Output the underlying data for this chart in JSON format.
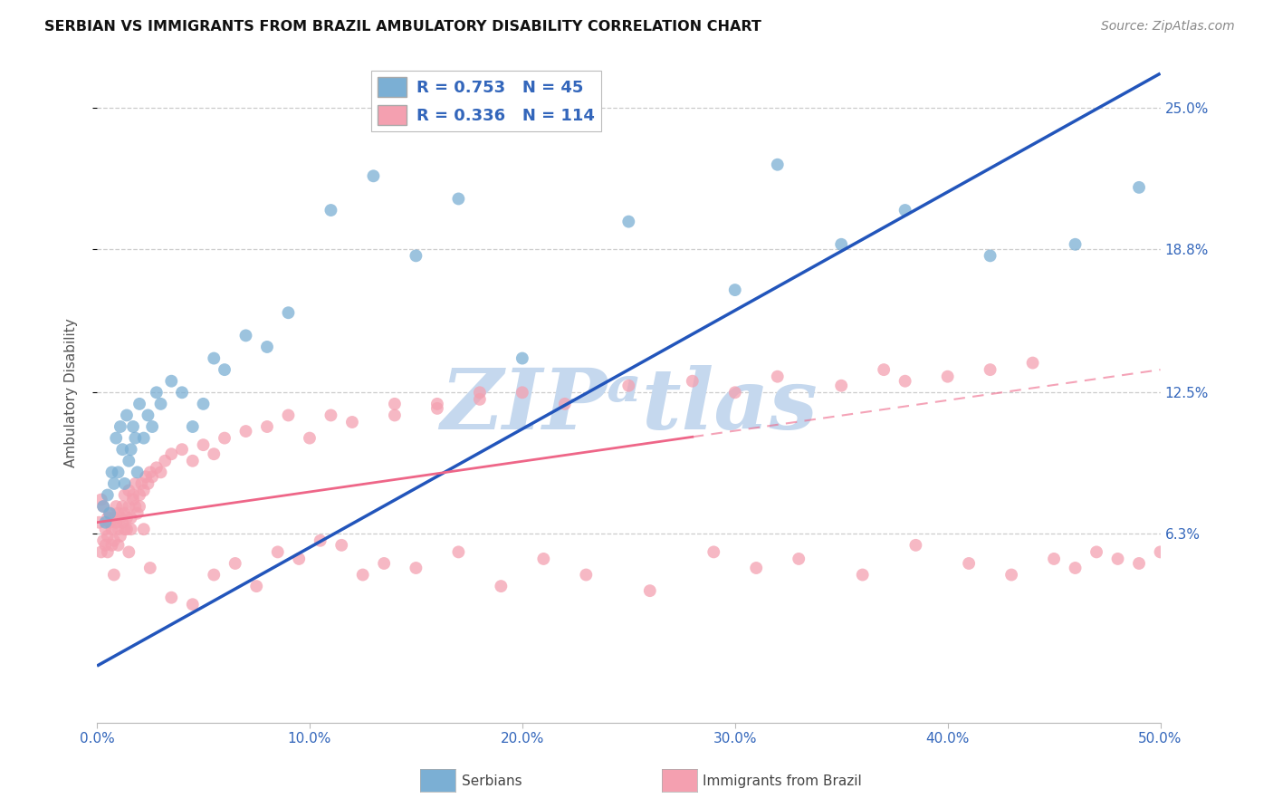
{
  "title": "SERBIAN VS IMMIGRANTS FROM BRAZIL AMBULATORY DISABILITY CORRELATION CHART",
  "source": "Source: ZipAtlas.com",
  "ylabel": "Ambulatory Disability",
  "xlabel_vals": [
    0.0,
    10.0,
    20.0,
    30.0,
    40.0,
    50.0
  ],
  "ylabel_vals": [
    6.3,
    12.5,
    18.8,
    25.0
  ],
  "xlim": [
    0.0,
    50.0
  ],
  "ylim": [
    -2.0,
    27.0
  ],
  "serbian_R": 0.753,
  "serbian_N": 45,
  "brazil_R": 0.336,
  "brazil_N": 114,
  "serbian_color": "#7BAFD4",
  "brazil_color": "#F4A0B0",
  "serbian_line_color": "#2255BB",
  "brazil_line_color": "#EE6688",
  "watermark_color": "#C5D8EE",
  "serbian_line_x0": 0.0,
  "serbian_line_y0": 0.5,
  "serbian_line_x1": 50.0,
  "serbian_line_y1": 26.5,
  "brazil_line_x0": 0.0,
  "brazil_line_y0": 6.8,
  "brazil_line_x1": 50.0,
  "brazil_line_y1": 13.5,
  "serbian_x": [
    0.3,
    0.4,
    0.5,
    0.6,
    0.7,
    0.8,
    0.9,
    1.0,
    1.1,
    1.2,
    1.3,
    1.4,
    1.5,
    1.6,
    1.7,
    1.8,
    1.9,
    2.0,
    2.2,
    2.4,
    2.6,
    2.8,
    3.0,
    3.5,
    4.0,
    4.5,
    5.0,
    5.5,
    6.0,
    7.0,
    8.0,
    9.0,
    11.0,
    13.0,
    15.0,
    17.0,
    20.0,
    25.0,
    30.0,
    32.0,
    35.0,
    38.0,
    42.0,
    46.0,
    49.0
  ],
  "serbian_y": [
    7.5,
    6.8,
    8.0,
    7.2,
    9.0,
    8.5,
    10.5,
    9.0,
    11.0,
    10.0,
    8.5,
    11.5,
    9.5,
    10.0,
    11.0,
    10.5,
    9.0,
    12.0,
    10.5,
    11.5,
    11.0,
    12.5,
    12.0,
    13.0,
    12.5,
    11.0,
    12.0,
    14.0,
    13.5,
    15.0,
    14.5,
    16.0,
    20.5,
    22.0,
    18.5,
    21.0,
    14.0,
    20.0,
    17.0,
    22.5,
    19.0,
    20.5,
    18.5,
    19.0,
    21.5
  ],
  "brazil_x": [
    0.1,
    0.2,
    0.3,
    0.3,
    0.4,
    0.4,
    0.5,
    0.5,
    0.5,
    0.6,
    0.6,
    0.7,
    0.7,
    0.8,
    0.8,
    0.9,
    0.9,
    1.0,
    1.0,
    1.0,
    1.1,
    1.1,
    1.2,
    1.2,
    1.3,
    1.3,
    1.3,
    1.4,
    1.4,
    1.5,
    1.5,
    1.6,
    1.6,
    1.7,
    1.7,
    1.8,
    1.8,
    1.9,
    2.0,
    2.0,
    2.1,
    2.2,
    2.3,
    2.4,
    2.5,
    2.6,
    2.8,
    3.0,
    3.2,
    3.5,
    4.0,
    4.5,
    5.0,
    5.5,
    6.0,
    7.0,
    8.0,
    9.0,
    10.0,
    11.0,
    12.0,
    14.0,
    16.0,
    18.0,
    20.0,
    22.0,
    25.0,
    28.0,
    30.0,
    32.0,
    35.0,
    37.0,
    38.0,
    40.0,
    42.0,
    44.0,
    14.0,
    16.0,
    18.0,
    2.5,
    3.5,
    4.5,
    5.5,
    6.5,
    7.5,
    8.5,
    9.5,
    10.5,
    11.5,
    12.5,
    13.5,
    15.0,
    17.0,
    19.0,
    21.0,
    23.0,
    26.0,
    29.0,
    31.0,
    33.0,
    36.0,
    38.5,
    41.0,
    43.0,
    45.0,
    46.0,
    47.0,
    48.0,
    49.0,
    50.0,
    0.2,
    0.8,
    1.5,
    2.2
  ],
  "brazil_y": [
    6.8,
    5.5,
    6.0,
    7.5,
    6.5,
    5.8,
    7.0,
    6.2,
    5.5,
    6.8,
    7.2,
    5.8,
    6.5,
    7.0,
    6.0,
    6.8,
    7.5,
    6.5,
    7.2,
    5.8,
    7.0,
    6.2,
    6.8,
    7.5,
    7.2,
    6.5,
    8.0,
    7.0,
    6.5,
    7.5,
    8.2,
    7.0,
    6.5,
    7.8,
    8.0,
    7.5,
    8.5,
    7.2,
    8.0,
    7.5,
    8.5,
    8.2,
    8.8,
    8.5,
    9.0,
    8.8,
    9.2,
    9.0,
    9.5,
    9.8,
    10.0,
    9.5,
    10.2,
    9.8,
    10.5,
    10.8,
    11.0,
    11.5,
    10.5,
    11.5,
    11.2,
    12.0,
    11.8,
    12.2,
    12.5,
    12.0,
    12.8,
    13.0,
    12.5,
    13.2,
    12.8,
    13.5,
    13.0,
    13.2,
    13.5,
    13.8,
    11.5,
    12.0,
    12.5,
    4.8,
    3.5,
    3.2,
    4.5,
    5.0,
    4.0,
    5.5,
    5.2,
    6.0,
    5.8,
    4.5,
    5.0,
    4.8,
    5.5,
    4.0,
    5.2,
    4.5,
    3.8,
    5.5,
    4.8,
    5.2,
    4.5,
    5.8,
    5.0,
    4.5,
    5.2,
    4.8,
    5.5,
    5.2,
    5.0,
    5.5,
    7.8,
    4.5,
    5.5,
    6.5
  ]
}
